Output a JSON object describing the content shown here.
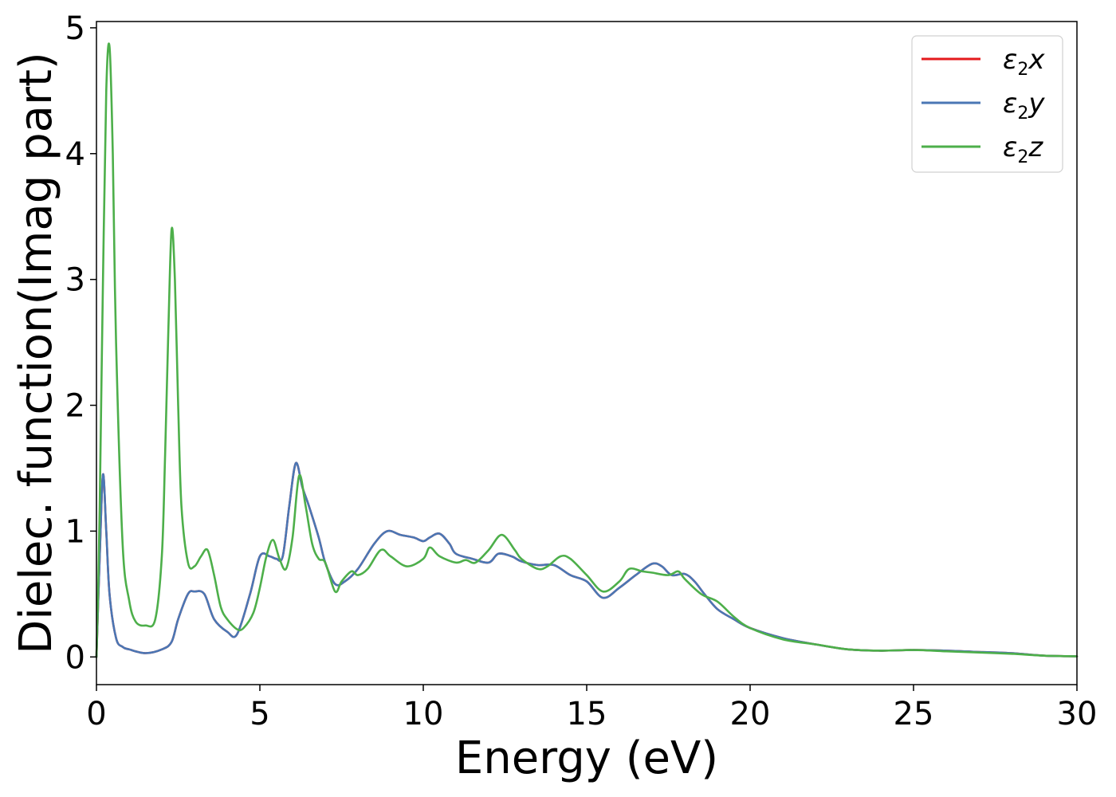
{
  "chart_data": {
    "type": "line",
    "title": "",
    "xlabel": "Energy (eV)",
    "ylabel": "Dielec. function(Imag part)",
    "xlim": [
      0,
      30
    ],
    "ylim": [
      -0.22,
      5.05
    ],
    "xticks": [
      0,
      5,
      10,
      15,
      20,
      25,
      30
    ],
    "yticks": [
      0,
      1,
      2,
      3,
      4,
      5
    ],
    "grid": false,
    "legend": "top-right",
    "series": [
      {
        "name": "ε2x",
        "legend_main": "ε",
        "legend_sub": "2",
        "legend_suffix": "x",
        "color": "#e41a1c",
        "x": [
          0,
          0.1,
          0.2,
          0.3,
          0.4,
          0.6,
          0.8,
          1.0,
          1.5,
          2.0,
          2.3,
          2.5,
          2.8,
          3.0,
          3.3,
          3.6,
          4.0,
          4.3,
          4.7,
          5.0,
          5.3,
          5.5,
          5.7,
          5.9,
          6.1,
          6.3,
          6.5,
          6.8,
          7.0,
          7.3,
          7.6,
          8.0,
          8.5,
          8.9,
          9.3,
          9.7,
          10.0,
          10.2,
          10.5,
          10.8,
          11.0,
          11.5,
          12.0,
          12.3,
          12.7,
          13.0,
          13.5,
          14.0,
          14.5,
          15.0,
          15.5,
          16.0,
          16.5,
          17.0,
          17.3,
          17.6,
          18.0,
          18.3,
          18.6,
          19.0,
          19.5,
          20.0,
          21.0,
          22.0,
          23.0,
          24.0,
          25.0,
          26.0,
          26.5,
          27.0,
          28.0,
          29.0,
          30.0
        ],
        "y": [
          0,
          0.8,
          1.45,
          1.0,
          0.5,
          0.15,
          0.08,
          0.06,
          0.03,
          0.06,
          0.12,
          0.3,
          0.5,
          0.52,
          0.5,
          0.3,
          0.2,
          0.18,
          0.5,
          0.8,
          0.8,
          0.78,
          0.8,
          1.2,
          1.54,
          1.35,
          1.2,
          0.95,
          0.75,
          0.58,
          0.6,
          0.7,
          0.9,
          1.0,
          0.97,
          0.95,
          0.92,
          0.95,
          0.98,
          0.9,
          0.82,
          0.78,
          0.75,
          0.82,
          0.8,
          0.76,
          0.73,
          0.73,
          0.65,
          0.6,
          0.47,
          0.55,
          0.65,
          0.74,
          0.72,
          0.65,
          0.66,
          0.6,
          0.5,
          0.38,
          0.3,
          0.23,
          0.15,
          0.1,
          0.06,
          0.05,
          0.055,
          0.05,
          0.045,
          0.04,
          0.03,
          0.01,
          0.005
        ]
      },
      {
        "name": "ε2y",
        "legend_main": "ε",
        "legend_sub": "2",
        "legend_suffix": "y",
        "color": "#4a77b4",
        "x": [
          0,
          0.1,
          0.2,
          0.3,
          0.4,
          0.6,
          0.8,
          1.0,
          1.5,
          2.0,
          2.3,
          2.5,
          2.8,
          3.0,
          3.3,
          3.6,
          4.0,
          4.3,
          4.7,
          5.0,
          5.3,
          5.5,
          5.7,
          5.9,
          6.1,
          6.3,
          6.5,
          6.8,
          7.0,
          7.3,
          7.6,
          8.0,
          8.5,
          8.9,
          9.3,
          9.7,
          10.0,
          10.2,
          10.5,
          10.8,
          11.0,
          11.5,
          12.0,
          12.3,
          12.7,
          13.0,
          13.5,
          14.0,
          14.5,
          15.0,
          15.5,
          16.0,
          16.5,
          17.0,
          17.3,
          17.6,
          18.0,
          18.3,
          18.6,
          19.0,
          19.5,
          20.0,
          21.0,
          22.0,
          23.0,
          24.0,
          25.0,
          26.0,
          26.5,
          27.0,
          28.0,
          29.0,
          30.0
        ],
        "y": [
          0,
          0.8,
          1.45,
          1.0,
          0.5,
          0.15,
          0.08,
          0.06,
          0.03,
          0.06,
          0.12,
          0.3,
          0.5,
          0.52,
          0.5,
          0.3,
          0.2,
          0.18,
          0.5,
          0.8,
          0.8,
          0.78,
          0.8,
          1.2,
          1.54,
          1.35,
          1.2,
          0.95,
          0.75,
          0.58,
          0.6,
          0.7,
          0.9,
          1.0,
          0.97,
          0.95,
          0.92,
          0.95,
          0.98,
          0.9,
          0.82,
          0.78,
          0.75,
          0.82,
          0.8,
          0.76,
          0.73,
          0.73,
          0.65,
          0.6,
          0.47,
          0.55,
          0.65,
          0.74,
          0.72,
          0.65,
          0.66,
          0.6,
          0.5,
          0.38,
          0.3,
          0.23,
          0.15,
          0.1,
          0.06,
          0.05,
          0.055,
          0.05,
          0.045,
          0.04,
          0.03,
          0.01,
          0.005
        ]
      },
      {
        "name": "ε2z",
        "legend_main": "ε",
        "legend_sub": "2",
        "legend_suffix": "z",
        "color": "#4daf4a",
        "x": [
          0,
          0.05,
          0.1,
          0.2,
          0.3,
          0.4,
          0.5,
          0.6,
          0.8,
          1.0,
          1.2,
          1.5,
          1.8,
          2.0,
          2.1,
          2.2,
          2.3,
          2.4,
          2.5,
          2.6,
          2.8,
          3.0,
          3.2,
          3.4,
          3.6,
          3.8,
          4.0,
          4.3,
          4.5,
          4.8,
          5.0,
          5.2,
          5.4,
          5.6,
          5.8,
          6.0,
          6.2,
          6.4,
          6.6,
          6.8,
          7.0,
          7.3,
          7.5,
          7.8,
          8.0,
          8.3,
          8.7,
          9.0,
          9.5,
          10.0,
          10.2,
          10.5,
          11.0,
          11.3,
          11.6,
          12.0,
          12.4,
          12.8,
          13.0,
          13.5,
          13.8,
          14.2,
          14.5,
          15.0,
          15.5,
          16.0,
          16.3,
          16.7,
          17.0,
          17.5,
          17.8,
          18.0,
          18.5,
          19.0,
          19.5,
          20.0,
          21.0,
          22.0,
          23.0,
          24.0,
          25.0,
          26.0,
          27.0,
          28.0,
          29.0,
          30.0
        ],
        "y": [
          0,
          0.5,
          1.2,
          3.0,
          4.5,
          4.85,
          4.0,
          2.5,
          0.9,
          0.45,
          0.28,
          0.25,
          0.3,
          0.8,
          1.6,
          2.6,
          3.4,
          3.0,
          2.0,
          1.2,
          0.75,
          0.72,
          0.8,
          0.85,
          0.65,
          0.4,
          0.3,
          0.22,
          0.23,
          0.35,
          0.55,
          0.8,
          0.93,
          0.78,
          0.7,
          0.95,
          1.44,
          1.2,
          0.9,
          0.78,
          0.75,
          0.52,
          0.6,
          0.68,
          0.65,
          0.7,
          0.85,
          0.8,
          0.72,
          0.78,
          0.87,
          0.8,
          0.75,
          0.77,
          0.75,
          0.85,
          0.97,
          0.85,
          0.78,
          0.7,
          0.72,
          0.8,
          0.78,
          0.65,
          0.52,
          0.6,
          0.7,
          0.68,
          0.67,
          0.65,
          0.68,
          0.62,
          0.5,
          0.44,
          0.32,
          0.23,
          0.14,
          0.1,
          0.06,
          0.05,
          0.055,
          0.045,
          0.035,
          0.025,
          0.01,
          0.005
        ]
      }
    ]
  }
}
